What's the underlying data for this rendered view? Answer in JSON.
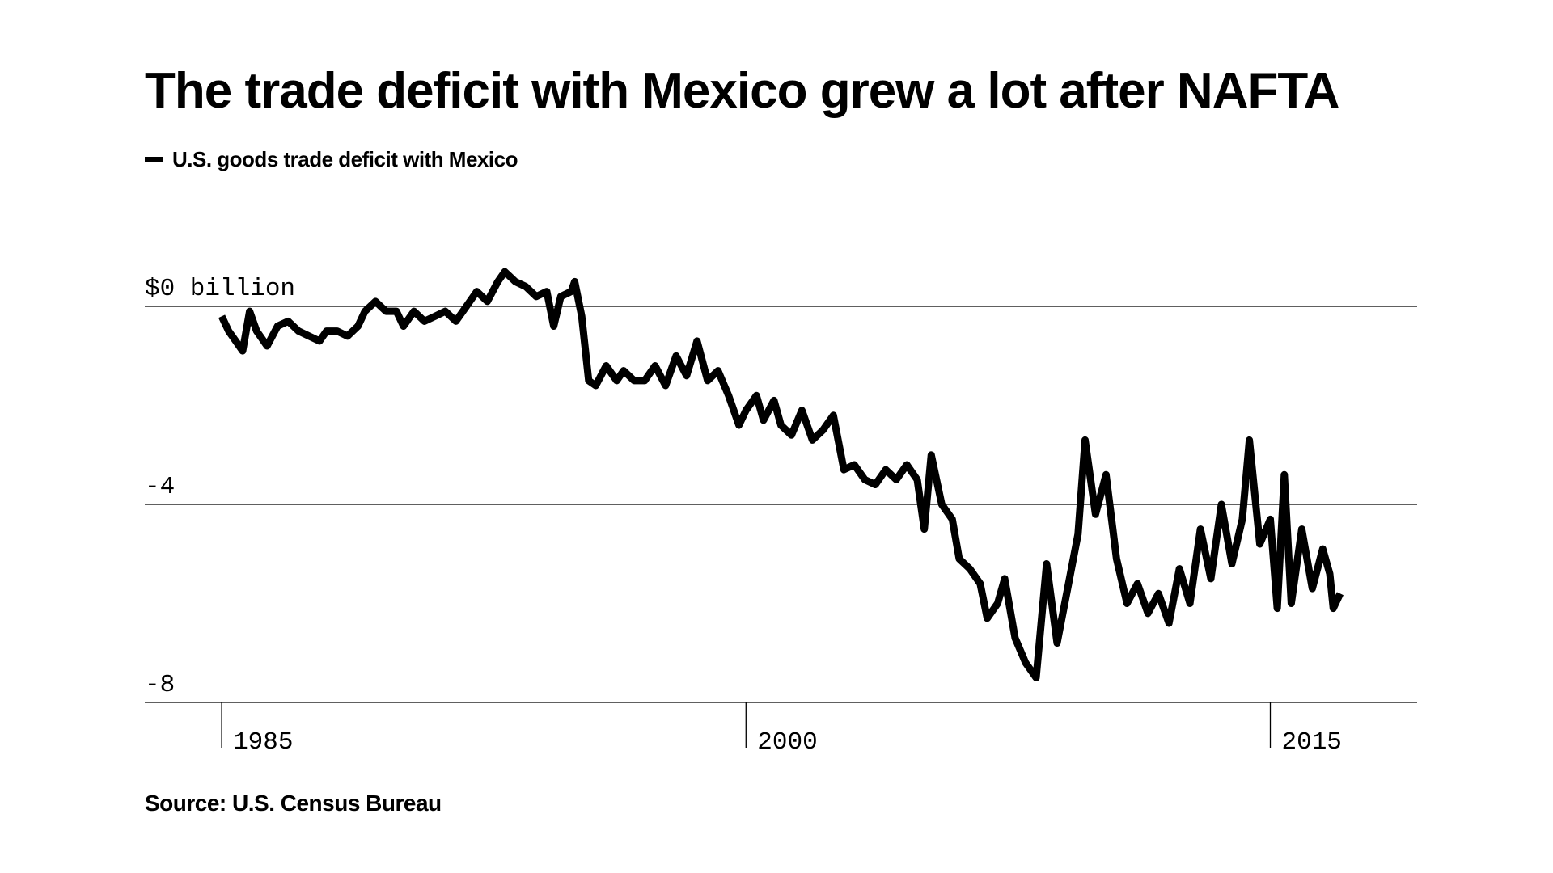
{
  "chart_data": {
    "type": "line",
    "title": "The trade deficit with Mexico grew a lot after NAFTA",
    "xlabel": "",
    "ylabel": "",
    "source": "Source: U.S. Census Bureau",
    "legend_placement": "top-left",
    "grid": "horizontal",
    "y_ticks": [
      {
        "value": 0,
        "label": "$0 billion"
      },
      {
        "value": -4,
        "label": "-4"
      },
      {
        "value": -8,
        "label": "-8"
      }
    ],
    "x_ticks": [
      {
        "value": 1985,
        "label": "1985"
      },
      {
        "value": 2000,
        "label": "2000"
      },
      {
        "value": 2015,
        "label": "2015"
      }
    ],
    "xlim": [
      1982.8,
      2019.2
    ],
    "ylim": [
      -8,
      0
    ],
    "colors": {
      "line": "#000000",
      "grid": "#000000"
    },
    "series": [
      {
        "name": "U.S. goods trade deficit with Mexico",
        "points": [
          [
            1985.0,
            -0.2
          ],
          [
            1985.2,
            -0.5
          ],
          [
            1985.4,
            -0.7
          ],
          [
            1985.6,
            -0.9
          ],
          [
            1985.8,
            -0.1
          ],
          [
            1986.0,
            -0.5
          ],
          [
            1986.3,
            -0.8
          ],
          [
            1986.6,
            -0.4
          ],
          [
            1986.9,
            -0.3
          ],
          [
            1987.2,
            -0.5
          ],
          [
            1987.5,
            -0.6
          ],
          [
            1987.8,
            -0.7
          ],
          [
            1988.0,
            -0.5
          ],
          [
            1988.3,
            -0.5
          ],
          [
            1988.6,
            -0.6
          ],
          [
            1988.9,
            -0.4
          ],
          [
            1989.1,
            -0.1
          ],
          [
            1989.4,
            0.1
          ],
          [
            1989.7,
            -0.1
          ],
          [
            1990.0,
            -0.1
          ],
          [
            1990.2,
            -0.4
          ],
          [
            1990.5,
            -0.1
          ],
          [
            1990.8,
            -0.3
          ],
          [
            1991.1,
            -0.2
          ],
          [
            1991.4,
            -0.1
          ],
          [
            1991.7,
            -0.3
          ],
          [
            1992.0,
            0.0
          ],
          [
            1992.3,
            0.3
          ],
          [
            1992.6,
            0.1
          ],
          [
            1992.9,
            0.5
          ],
          [
            1993.1,
            0.7
          ],
          [
            1993.4,
            0.5
          ],
          [
            1993.7,
            0.4
          ],
          [
            1994.0,
            0.2
          ],
          [
            1994.3,
            0.3
          ],
          [
            1994.5,
            -0.4
          ],
          [
            1994.7,
            0.2
          ],
          [
            1995.0,
            0.3
          ],
          [
            1995.1,
            0.5
          ],
          [
            1995.3,
            -0.2
          ],
          [
            1995.5,
            -1.5
          ],
          [
            1995.7,
            -1.6
          ],
          [
            1996.0,
            -1.2
          ],
          [
            1996.3,
            -1.5
          ],
          [
            1996.5,
            -1.3
          ],
          [
            1996.8,
            -1.5
          ],
          [
            1997.1,
            -1.5
          ],
          [
            1997.4,
            -1.2
          ],
          [
            1997.7,
            -1.6
          ],
          [
            1998.0,
            -1.0
          ],
          [
            1998.3,
            -1.4
          ],
          [
            1998.6,
            -0.7
          ],
          [
            1998.9,
            -1.5
          ],
          [
            1999.2,
            -1.3
          ],
          [
            1999.5,
            -1.8
          ],
          [
            1999.8,
            -2.4
          ],
          [
            2000.0,
            -2.1
          ],
          [
            2000.3,
            -1.8
          ],
          [
            2000.5,
            -2.3
          ],
          [
            2000.8,
            -1.9
          ],
          [
            2001.0,
            -2.4
          ],
          [
            2001.3,
            -2.6
          ],
          [
            2001.6,
            -2.1
          ],
          [
            2001.9,
            -2.7
          ],
          [
            2002.2,
            -2.5
          ],
          [
            2002.5,
            -2.2
          ],
          [
            2002.8,
            -3.3
          ],
          [
            2003.1,
            -3.2
          ],
          [
            2003.4,
            -3.5
          ],
          [
            2003.7,
            -3.6
          ],
          [
            2004.0,
            -3.3
          ],
          [
            2004.3,
            -3.5
          ],
          [
            2004.6,
            -3.2
          ],
          [
            2004.9,
            -3.5
          ],
          [
            2005.1,
            -4.5
          ],
          [
            2005.3,
            -3.0
          ],
          [
            2005.6,
            -4.0
          ],
          [
            2005.9,
            -4.3
          ],
          [
            2006.1,
            -5.1
          ],
          [
            2006.4,
            -5.3
          ],
          [
            2006.7,
            -5.6
          ],
          [
            2006.9,
            -6.3
          ],
          [
            2007.2,
            -6.0
          ],
          [
            2007.4,
            -5.5
          ],
          [
            2007.7,
            -6.7
          ],
          [
            2008.0,
            -7.2
          ],
          [
            2008.3,
            -7.5
          ],
          [
            2008.6,
            -5.2
          ],
          [
            2008.9,
            -6.8
          ],
          [
            2009.2,
            -5.7
          ],
          [
            2009.5,
            -4.6
          ],
          [
            2009.7,
            -2.7
          ],
          [
            2010.0,
            -4.2
          ],
          [
            2010.3,
            -3.4
          ],
          [
            2010.6,
            -5.1
          ],
          [
            2010.9,
            -6.0
          ],
          [
            2011.2,
            -5.6
          ],
          [
            2011.5,
            -6.2
          ],
          [
            2011.8,
            -5.8
          ],
          [
            2012.1,
            -6.4
          ],
          [
            2012.4,
            -5.3
          ],
          [
            2012.7,
            -6.0
          ],
          [
            2013.0,
            -4.5
          ],
          [
            2013.3,
            -5.5
          ],
          [
            2013.6,
            -4.0
          ],
          [
            2013.9,
            -5.2
          ],
          [
            2014.2,
            -4.3
          ],
          [
            2014.4,
            -2.7
          ],
          [
            2014.7,
            -4.8
          ],
          [
            2015.0,
            -4.3
          ],
          [
            2015.2,
            -6.1
          ],
          [
            2015.4,
            -3.4
          ],
          [
            2015.6,
            -6.0
          ],
          [
            2015.9,
            -4.5
          ],
          [
            2016.2,
            -5.7
          ],
          [
            2016.5,
            -4.9
          ],
          [
            2016.7,
            -5.4
          ],
          [
            2016.8,
            -6.1
          ],
          [
            2017.0,
            -5.8
          ]
        ]
      }
    ]
  }
}
